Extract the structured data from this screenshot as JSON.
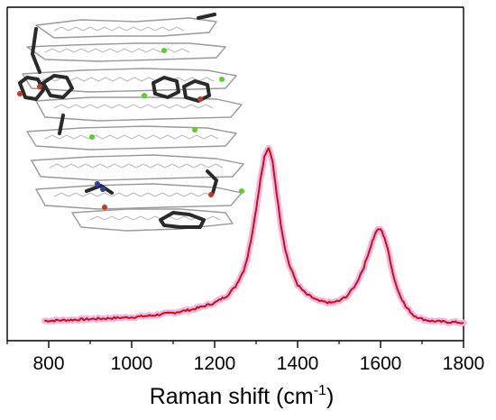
{
  "chart_data": {
    "type": "line",
    "title": "",
    "xlabel": "Raman shift (cm",
    "xlabel_superscript": "-1",
    "xlabel_close": ")",
    "ylabel": "",
    "xlim": [
      700,
      1800
    ],
    "ylim": [
      0,
      1
    ],
    "x_ticks": [
      800,
      1000,
      1200,
      1400,
      1600,
      1800
    ],
    "y_ticks_visible": false,
    "grid": false,
    "legend": "none",
    "inset": "molecular structure rendering of stacked graphene-like sheets with functional groups",
    "colors": {
      "line": "#c8101a",
      "line_shadow": "#f2b6e0",
      "axis": "#000000"
    },
    "series": [
      {
        "x": [
          790,
          850,
          900,
          950,
          1000,
          1050,
          1100,
          1150,
          1200,
          1230,
          1250,
          1270,
          1280,
          1290,
          1300,
          1310,
          1320,
          1330,
          1340,
          1350,
          1360,
          1370,
          1380,
          1400,
          1420,
          1450,
          1480,
          1500,
          1520,
          1540,
          1560,
          1570,
          1580,
          1590,
          1600,
          1610,
          1620,
          1630,
          1640,
          1660,
          1680,
          1700,
          1720,
          1750,
          1800
        ],
        "y": [
          0.02,
          0.025,
          0.03,
          0.035,
          0.04,
          0.05,
          0.065,
          0.085,
          0.12,
          0.16,
          0.21,
          0.3,
          0.38,
          0.5,
          0.64,
          0.8,
          0.93,
          0.98,
          0.9,
          0.72,
          0.55,
          0.42,
          0.33,
          0.22,
          0.17,
          0.13,
          0.12,
          0.13,
          0.16,
          0.22,
          0.32,
          0.39,
          0.46,
          0.52,
          0.53,
          0.48,
          0.39,
          0.28,
          0.2,
          0.1,
          0.05,
          0.03,
          0.02,
          0.015,
          0.01
        ]
      }
    ]
  }
}
